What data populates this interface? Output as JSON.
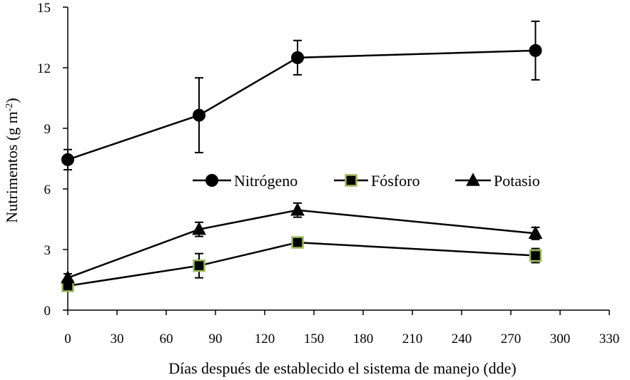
{
  "chart_data": {
    "type": "line",
    "title": "",
    "xlabel": "Días después de establecido el sistema de manejo (dde)",
    "ylabel": "Nutrimentos (g m",
    "ylabel_sup": "-2",
    "ylabel_close": ")",
    "xlim": [
      0,
      330
    ],
    "ylim": [
      0,
      15
    ],
    "xticks": [
      "0",
      "30",
      "60",
      "90",
      "120",
      "150",
      "180",
      "210",
      "240",
      "270",
      "300",
      "330"
    ],
    "yticks": [
      "0",
      "3",
      "6",
      "9",
      "12",
      "15"
    ],
    "grid": false,
    "legend_position": "middle-right, horizontal",
    "series": [
      {
        "name": "Nitrógeno",
        "marker": "circle",
        "color": "#000000",
        "fill": "#000000",
        "x": [
          0,
          80,
          140,
          285
        ],
        "y": [
          7.45,
          9.65,
          12.5,
          12.85
        ],
        "err": [
          0.5,
          1.85,
          0.85,
          1.45
        ]
      },
      {
        "name": "Fósforo",
        "marker": "square",
        "color": "#000000",
        "fill": "#000000",
        "edge": "#9bbb59",
        "x": [
          0,
          80,
          140,
          285
        ],
        "y": [
          1.2,
          2.2,
          3.35,
          2.7
        ],
        "err": [
          0.15,
          0.6,
          0.15,
          0.35
        ]
      },
      {
        "name": "Potasio",
        "marker": "triangle",
        "color": "#000000",
        "fill": "#000000",
        "x": [
          0,
          80,
          140,
          285
        ],
        "y": [
          1.6,
          4.0,
          4.95,
          3.8
        ],
        "err": [
          0.2,
          0.35,
          0.35,
          0.3
        ]
      }
    ]
  }
}
